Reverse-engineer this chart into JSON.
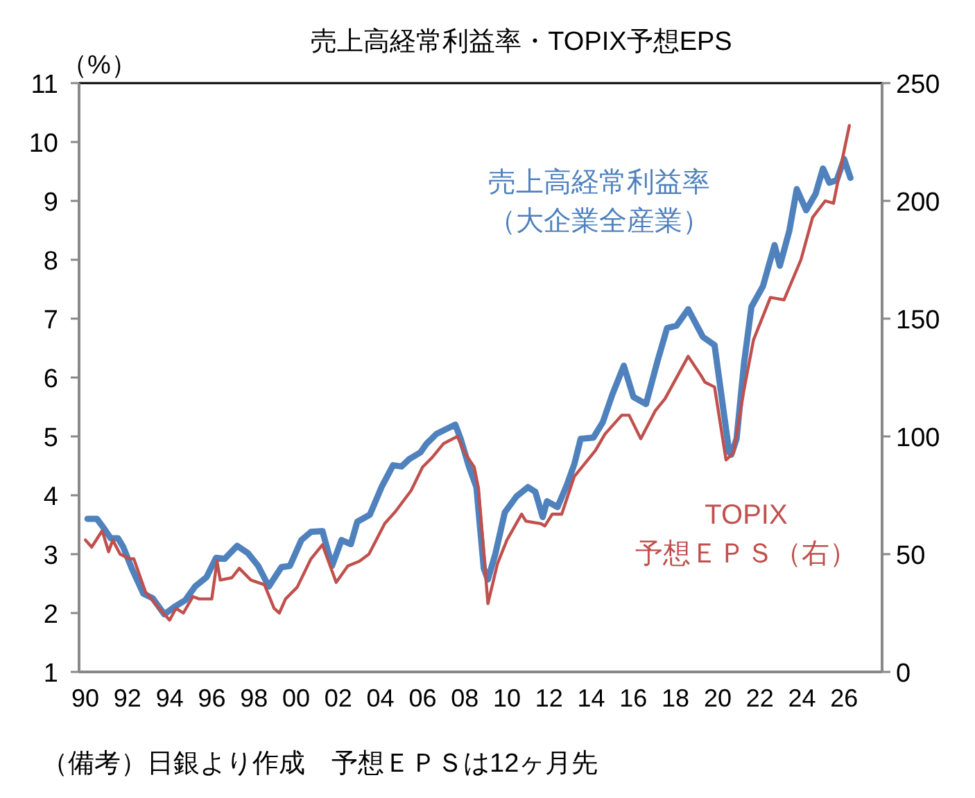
{
  "chart_data": {
    "type": "line",
    "title": "売上高経常利益率・TOPIX予想EPS",
    "ylabel": "（%）",
    "annotations": [
      "（備考）日銀より作成　予想ＥＰＳは12ヶ月先"
    ],
    "xlim": [
      1989.7,
      2027.8
    ],
    "xticks": [
      {
        "value": 1990,
        "label": "90"
      },
      {
        "value": 1992,
        "label": "92"
      },
      {
        "value": 1994,
        "label": "94"
      },
      {
        "value": 1996,
        "label": "96"
      },
      {
        "value": 1998,
        "label": "98"
      },
      {
        "value": 2000,
        "label": "00"
      },
      {
        "value": 2002,
        "label": "02"
      },
      {
        "value": 2004,
        "label": "04"
      },
      {
        "value": 2006,
        "label": "06"
      },
      {
        "value": 2008,
        "label": "08"
      },
      {
        "value": 2010,
        "label": "10"
      },
      {
        "value": 2012,
        "label": "12"
      },
      {
        "value": 2014,
        "label": "14"
      },
      {
        "value": 2016,
        "label": "16"
      },
      {
        "value": 2018,
        "label": "18"
      },
      {
        "value": 2020,
        "label": "20"
      },
      {
        "value": 2022,
        "label": "22"
      },
      {
        "value": 2024,
        "label": "24"
      },
      {
        "value": 2026,
        "label": "26"
      }
    ],
    "ylim": [
      1,
      11
    ],
    "yticks": [
      1,
      2,
      3,
      4,
      5,
      6,
      7,
      8,
      9,
      10,
      11
    ],
    "y2lim": [
      0,
      250
    ],
    "y2ticks": [
      0,
      50,
      100,
      150,
      200,
      250
    ],
    "grid": false,
    "legend": false,
    "line_style": "solid",
    "marker": "none",
    "series": [
      {
        "name": "売上高経常利益率（大企業全産業）",
        "color": "#4f81bd",
        "x": [
          1990.1,
          1990.55,
          1990.9,
          1991.2,
          1991.55,
          1991.8,
          1992.2,
          1992.75,
          1993.2,
          1993.75,
          1994.2,
          1994.75,
          1995.2,
          1995.75,
          1996.2,
          1996.6,
          1997.2,
          1997.7,
          1998.2,
          1998.7,
          1999.3,
          1999.7,
          2000.25,
          2000.7,
          2001.25,
          2001.7,
          2002.15,
          2002.6,
          2002.9,
          2003.5,
          2004.05,
          2004.6,
          2005.0,
          2005.35,
          2005.9,
          2006.2,
          2006.65,
          2007.1,
          2007.55,
          2007.8,
          2008.2,
          2008.55,
          2008.9,
          2009.1,
          2009.45,
          2009.9,
          2010.45,
          2011.0,
          2011.35,
          2011.7,
          2011.9,
          2012.4,
          2012.85,
          2013.2,
          2013.5,
          2014.1,
          2014.55,
          2015.0,
          2015.55,
          2016.0,
          2016.6,
          2017.15,
          2017.6,
          2018.05,
          2018.6,
          2019.3,
          2019.85,
          2020.55,
          2020.65,
          2020.9,
          2021.25,
          2021.6,
          2022.15,
          2022.7,
          2022.95,
          2023.4,
          2023.75,
          2024.2,
          2024.65,
          2025.0,
          2025.3,
          2025.65,
          2026.0,
          2026.3
        ],
        "values": [
          3.6,
          3.6,
          3.43,
          3.27,
          3.27,
          3.12,
          2.76,
          2.33,
          2.25,
          1.98,
          2.1,
          2.22,
          2.45,
          2.61,
          2.94,
          2.92,
          3.14,
          3.02,
          2.8,
          2.45,
          2.78,
          2.8,
          3.24,
          3.38,
          3.39,
          2.8,
          3.24,
          3.17,
          3.55,
          3.67,
          4.14,
          4.51,
          4.49,
          4.61,
          4.73,
          4.88,
          5.04,
          5.12,
          5.2,
          4.96,
          4.49,
          4.14,
          2.76,
          2.57,
          3.0,
          3.71,
          3.98,
          4.14,
          4.06,
          3.63,
          3.9,
          3.8,
          4.18,
          4.53,
          4.96,
          4.98,
          5.24,
          5.71,
          6.2,
          5.67,
          5.55,
          6.29,
          6.84,
          6.88,
          7.16,
          6.69,
          6.55,
          4.73,
          4.69,
          4.96,
          6.25,
          7.2,
          7.55,
          8.25,
          7.9,
          8.49,
          9.2,
          8.84,
          9.12,
          9.55,
          9.31,
          9.35,
          9.71,
          9.39
        ]
      },
      {
        "name": "TOPIX予想ＥＰＳ（右）",
        "color": "#c0504d",
        "axis": "y2",
        "x": [
          1990.0,
          1990.3,
          1990.8,
          1991.1,
          1991.3,
          1991.65,
          1992.1,
          1992.3,
          1992.85,
          1993.5,
          1994.0,
          1994.3,
          1994.65,
          1995.1,
          1995.4,
          1996.0,
          1996.25,
          1996.4,
          1996.95,
          1997.3,
          1997.85,
          1998.5,
          1998.95,
          1999.2,
          1999.5,
          2000.05,
          2000.7,
          2001.25,
          2001.9,
          2002.45,
          2003.0,
          2003.45,
          2004.2,
          2004.7,
          2005.45,
          2006.0,
          2006.45,
          2007.0,
          2007.65,
          2008.0,
          2008.45,
          2008.65,
          2009.1,
          2009.55,
          2010.0,
          2010.7,
          2010.9,
          2011.6,
          2011.8,
          2012.15,
          2012.6,
          2013.2,
          2014.2,
          2014.65,
          2015.45,
          2015.8,
          2016.35,
          2017.05,
          2017.5,
          2018.6,
          2019.2,
          2019.4,
          2019.85,
          2020.4,
          2020.75,
          2021.25,
          2021.7,
          2022.5,
          2023.15,
          2023.95,
          2024.5,
          2025.1,
          2025.5,
          2025.9,
          2026.25
        ],
        "values": [
          56,
          53,
          60,
          51,
          56,
          50,
          48,
          48,
          34,
          27,
          22,
          27,
          25,
          32,
          31,
          31,
          47,
          39,
          40,
          44,
          39,
          37,
          27,
          25,
          31,
          36,
          48,
          54,
          38,
          45,
          47,
          50,
          63,
          68,
          77,
          87,
          91,
          97,
          100,
          93,
          87,
          78,
          29,
          46,
          56,
          67,
          64,
          63,
          62,
          67,
          67,
          83,
          94,
          101,
          109,
          109,
          99,
          111,
          116,
          134,
          126,
          123,
          121,
          90,
          93,
          120,
          141,
          159,
          158,
          175,
          193,
          200,
          199,
          217,
          232
        ]
      }
    ]
  }
}
